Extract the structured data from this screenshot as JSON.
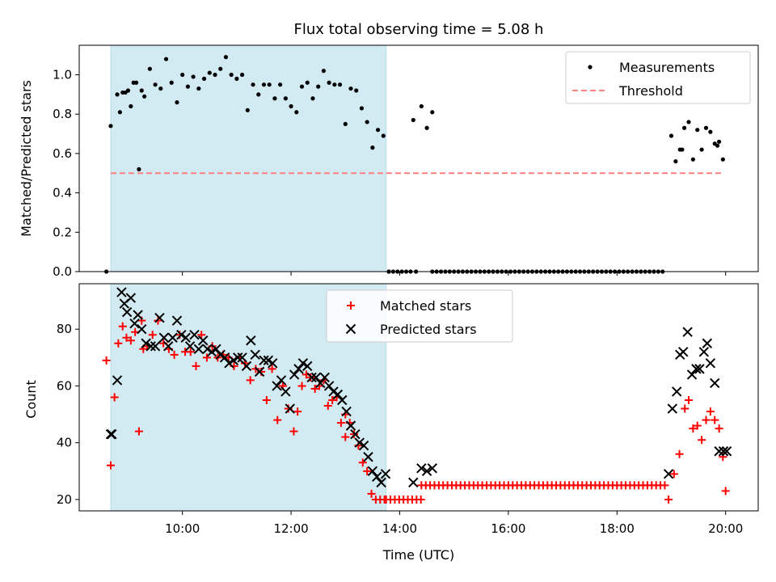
{
  "chart_data": [
    {
      "type": "scatter",
      "title": "Flux total observing time = 5.08 h",
      "xlabel": "",
      "ylabel": "Matched/Predicted stars",
      "xlim": [
        8.1,
        20.6
      ],
      "ylim": [
        0,
        1.15
      ],
      "yticks": [
        0.0,
        0.2,
        0.4,
        0.6,
        0.8,
        1.0
      ],
      "ytick_labels": [
        "0.0",
        "0.2",
        "0.4",
        "0.6",
        "0.8",
        "1.0"
      ],
      "legend": "top-right",
      "shaded_span": {
        "x": [
          8.68,
          13.75
        ],
        "color": "#add8e6"
      },
      "series": [
        {
          "name": "Measurements",
          "marker": "dot",
          "color": "#000000",
          "x": [
            8.6,
            8.68,
            8.8,
            8.9,
            9.0,
            9.1,
            9.2,
            9.3,
            9.4,
            9.5,
            9.6,
            9.7,
            9.8,
            9.9,
            10.0,
            10.1,
            10.2,
            10.3,
            10.4,
            10.5,
            10.6,
            10.7,
            10.8,
            10.9,
            11.0,
            11.1,
            11.2,
            11.3,
            11.4,
            11.5,
            11.6,
            11.7,
            11.8,
            11.9,
            12.0,
            12.1,
            12.2,
            12.3,
            12.4,
            12.5,
            12.6,
            12.7,
            12.8,
            12.9,
            13.0,
            13.1,
            13.2,
            13.3,
            13.4,
            13.5,
            13.6,
            13.7,
            8.85,
            8.95,
            9.05,
            9.15,
            9.25,
            13.8,
            14.25,
            14.4,
            14.5,
            14.6,
            19.85,
            19.0,
            19.08,
            19.16,
            19.24,
            19.32,
            19.4,
            19.48,
            19.56,
            19.64,
            19.72,
            19.8,
            19.88,
            19.95,
            19.2
          ],
          "y": [
            0.0,
            0.74,
            0.9,
            0.91,
            0.92,
            0.96,
            0.52,
            0.89,
            1.03,
            0.95,
            0.93,
            1.08,
            0.96,
            0.86,
            1.0,
            0.94,
            0.99,
            0.93,
            0.98,
            1.01,
            1.0,
            1.03,
            1.09,
            1.0,
            0.98,
            1.0,
            0.82,
            0.95,
            0.9,
            0.95,
            0.95,
            0.88,
            0.95,
            0.88,
            0.84,
            0.81,
            0.94,
            0.96,
            0.88,
            0.94,
            1.02,
            0.96,
            0.95,
            0.95,
            0.75,
            0.93,
            0.92,
            0.83,
            0.76,
            0.63,
            0.72,
            0.69,
            0.81,
            0.91,
            0.84,
            0.96,
            0.92,
            0.0,
            0.77,
            0.84,
            0.73,
            0.81,
            0.64,
            0.69,
            0.56,
            0.62,
            0.73,
            0.76,
            0.57,
            0.72,
            0.62,
            0.73,
            0.71,
            0.65,
            0.66,
            0.57,
            0.62
          ],
          "zero_segments": [
            [
              13.8,
              14.2
            ],
            [
              14.3,
              14.35
            ],
            [
              14.6,
              18.9
            ]
          ]
        },
        {
          "name": "Threshold",
          "marker": "dashed-line",
          "color": "#ff7f7f",
          "x": [
            8.68,
            19.95
          ],
          "y": [
            0.5,
            0.5
          ]
        }
      ]
    },
    {
      "type": "scatter",
      "title": "",
      "xlabel": "Time (UTC)",
      "ylabel": "Count",
      "xlim": [
        8.1,
        20.6
      ],
      "ylim": [
        16,
        96
      ],
      "xticks": [
        10,
        12,
        14,
        16,
        18,
        20
      ],
      "xtick_labels": [
        "10:00",
        "12:00",
        "14:00",
        "16:00",
        "18:00",
        "20:00"
      ],
      "yticks": [
        20,
        40,
        60,
        80
      ],
      "ytick_labels": [
        "20",
        "40",
        "60",
        "80"
      ],
      "legend": "top-center",
      "shaded_span": {
        "x": [
          8.68,
          13.75
        ],
        "color": "#add8e6"
      },
      "series": [
        {
          "name": "Matched stars",
          "marker": "plus",
          "color": "#ff0000",
          "x": [
            8.6,
            8.68,
            8.75,
            8.82,
            8.9,
            8.97,
            9.05,
            9.13,
            9.2,
            9.28,
            9.35,
            9.45,
            9.55,
            9.65,
            9.75,
            9.85,
            9.95,
            10.05,
            10.15,
            10.25,
            10.35,
            10.45,
            10.55,
            10.65,
            10.75,
            10.85,
            10.95,
            11.05,
            11.15,
            11.25,
            11.35,
            11.45,
            11.55,
            11.65,
            11.75,
            11.85,
            11.95,
            12.05,
            12.12,
            12.2,
            12.28,
            12.36,
            12.44,
            12.52,
            12.6,
            12.68,
            12.76,
            12.84,
            12.92,
            13.0,
            13.08,
            13.16,
            13.24,
            13.32,
            13.4,
            13.48,
            13.56,
            13.64,
            13.72,
            18.95,
            19.05,
            19.15,
            19.25,
            19.32,
            19.4,
            19.48,
            19.56,
            19.64,
            19.72,
            19.8,
            19.88,
            19.95,
            20.0,
            9.25,
            13.0
          ],
          "y": [
            69,
            32,
            56,
            75,
            81,
            77,
            76,
            79,
            44,
            73,
            74,
            78,
            83,
            75,
            73,
            71,
            78,
            72,
            72,
            67,
            78,
            70,
            74,
            70,
            71,
            70,
            67,
            70,
            68,
            62,
            66,
            65,
            55,
            66,
            48,
            60,
            52,
            44,
            51,
            60,
            64,
            63,
            59,
            60,
            62,
            53,
            55,
            56,
            47,
            50,
            47,
            43,
            39,
            33,
            30,
            22,
            20,
            20,
            20,
            20,
            29,
            36,
            52,
            55,
            45,
            46,
            41,
            48,
            51,
            48,
            45,
            35,
            23,
            83,
            42
          ],
          "flat_segment": {
            "x": [
              13.75,
              14.4
            ],
            "y": 20
          },
          "flat_segment_2": {
            "x": [
              14.4,
              18.9
            ],
            "y": 25
          }
        },
        {
          "name": "Predicted stars",
          "marker": "x",
          "color": "#000000",
          "x": [
            8.68,
            8.8,
            8.88,
            8.93,
            8.98,
            9.05,
            9.12,
            9.18,
            9.25,
            9.33,
            9.42,
            9.5,
            9.58,
            9.66,
            9.74,
            9.82,
            9.9,
            9.98,
            10.06,
            10.14,
            10.22,
            10.3,
            10.38,
            10.46,
            10.54,
            10.62,
            10.7,
            10.78,
            10.86,
            10.94,
            11.02,
            11.1,
            11.18,
            11.26,
            11.34,
            11.42,
            11.5,
            11.58,
            11.66,
            11.74,
            11.82,
            11.9,
            11.98,
            12.06,
            12.14,
            12.22,
            12.3,
            12.38,
            12.46,
            12.54,
            12.62,
            12.7,
            12.78,
            12.86,
            12.94,
            13.02,
            13.1,
            13.18,
            13.26,
            13.34,
            13.42,
            13.5,
            13.58,
            13.66,
            13.74,
            14.25,
            14.4,
            14.5,
            14.6,
            18.95,
            19.02,
            19.1,
            19.16,
            19.22,
            19.3,
            19.38,
            19.46,
            19.52,
            19.6,
            19.66,
            19.72,
            19.8,
            19.88,
            19.96,
            20.02,
            8.7
          ],
          "y": [
            43,
            62,
            93,
            89,
            86,
            91,
            82,
            85,
            80,
            75,
            74,
            74,
            84,
            77,
            74,
            77,
            83,
            78,
            77,
            74,
            78,
            73,
            76,
            73,
            72,
            73,
            71,
            70,
            68,
            69,
            70,
            70,
            67,
            76,
            71,
            65,
            69,
            69,
            68,
            60,
            62,
            58,
            52,
            64,
            66,
            68,
            67,
            63,
            63,
            61,
            63,
            60,
            58,
            57,
            55,
            51,
            46,
            43,
            40,
            39,
            35,
            30,
            28,
            26,
            29,
            26,
            31,
            30,
            31,
            29,
            52,
            58,
            71,
            72,
            79,
            64,
            66,
            66,
            72,
            75,
            68,
            61,
            37,
            37,
            37,
            43
          ]
        }
      ]
    }
  ]
}
